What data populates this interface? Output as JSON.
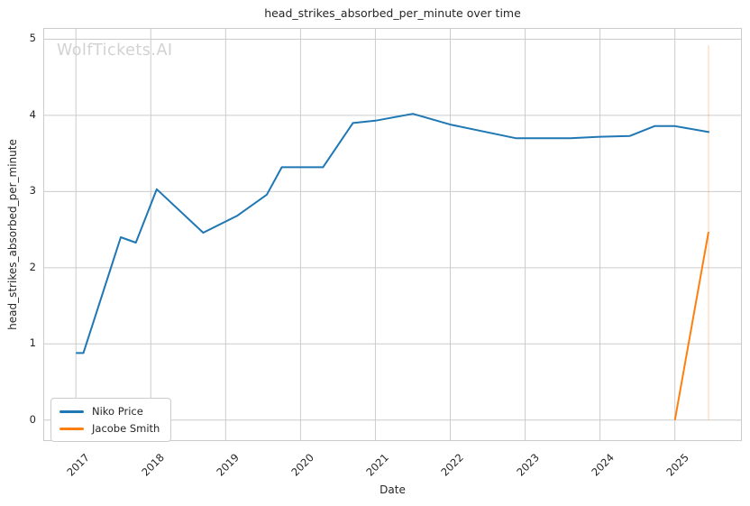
{
  "title": "head_strikes_absorbed_per_minute over time",
  "watermark": "WolfTickets.AI",
  "axes": {
    "xlabel": "Date",
    "ylabel": "head_strikes_absorbed_per_minute"
  },
  "legend": {
    "position": "lower left",
    "items": [
      {
        "label": "Niko Price",
        "color": "#1f77b4"
      },
      {
        "label": "Jacobe Smith",
        "color": "#ff7f0e"
      }
    ]
  },
  "colors": {
    "grid": "#cccccc",
    "spine": "#cccccc",
    "text": "#262626",
    "watermark": "#d2d2d2",
    "background": "#ffffff"
  },
  "chart_data": {
    "type": "line",
    "title": "head_strikes_absorbed_per_minute over time",
    "xlabel": "Date",
    "ylabel": "head_strikes_absorbed_per_minute",
    "grid": true,
    "legend_position": "lower left",
    "xlim": [
      2016.576,
      2025.883
    ],
    "ylim": [
      -0.264,
      5.136
    ],
    "x_ticks": [
      2017,
      2018,
      2019,
      2020,
      2021,
      2022,
      2023,
      2024,
      2025
    ],
    "y_ticks": [
      0,
      1,
      2,
      3,
      4,
      5
    ],
    "series": [
      {
        "name": "Niko Price",
        "color": "#1f77b4",
        "points": [
          [
            2017.0,
            0.88
          ],
          [
            2017.1,
            0.88
          ],
          [
            2017.6,
            2.4
          ],
          [
            2017.8,
            2.33
          ],
          [
            2018.08,
            3.03
          ],
          [
            2018.7,
            2.46
          ],
          [
            2019.15,
            2.68
          ],
          [
            2019.55,
            2.96
          ],
          [
            2019.75,
            3.32
          ],
          [
            2020.3,
            3.32
          ],
          [
            2020.7,
            3.9
          ],
          [
            2021.0,
            3.93
          ],
          [
            2021.5,
            4.02
          ],
          [
            2022.0,
            3.88
          ],
          [
            2022.88,
            3.7
          ],
          [
            2023.6,
            3.7
          ],
          [
            2024.0,
            3.72
          ],
          [
            2024.4,
            3.73
          ],
          [
            2024.73,
            3.86
          ],
          [
            2025.0,
            3.86
          ],
          [
            2025.46,
            3.78
          ]
        ]
      },
      {
        "name": "Jacobe Smith",
        "color": "#ff7f0e",
        "points": [
          [
            2025.0,
            0.0
          ],
          [
            2025.45,
            2.47
          ]
        ]
      }
    ],
    "annotations": [
      {
        "type": "vline",
        "x": 2025.45,
        "y_from": 0.0,
        "y_to": 4.92,
        "color": "#ff7f0e",
        "alpha": 0.3
      }
    ]
  }
}
